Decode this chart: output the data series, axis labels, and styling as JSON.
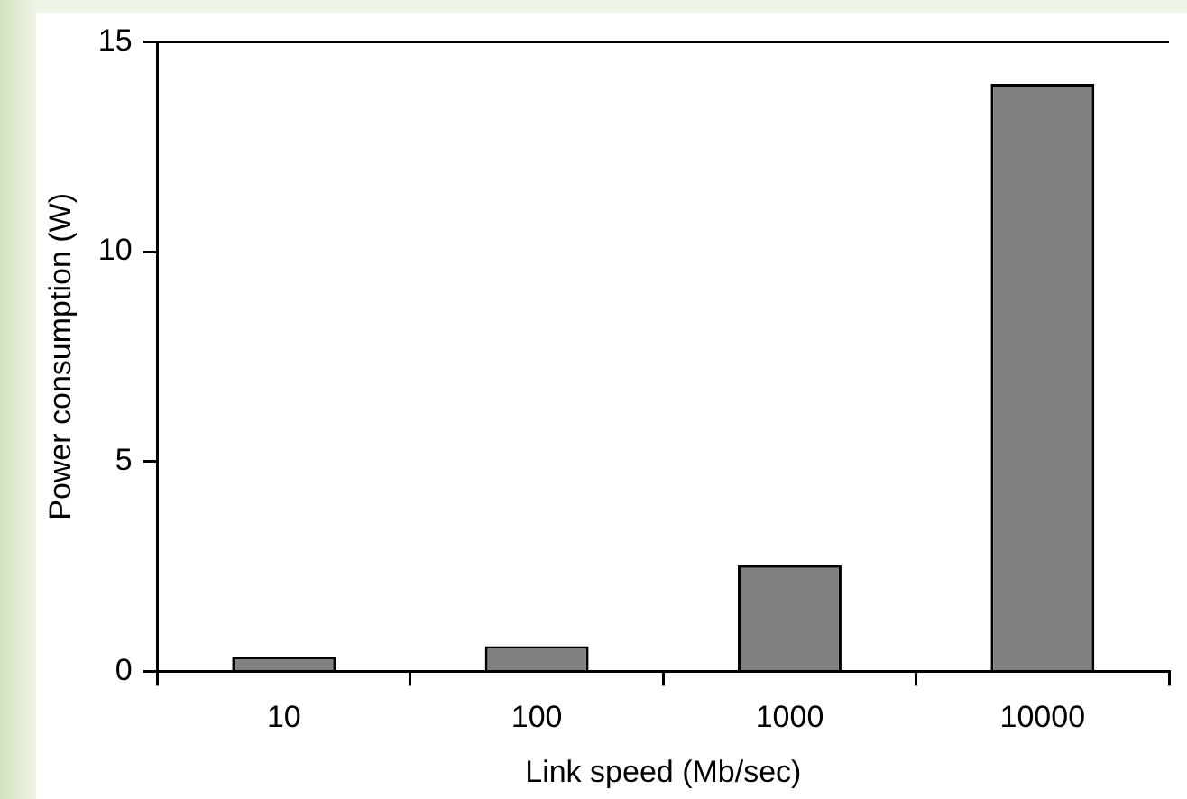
{
  "chart_data": {
    "type": "bar",
    "xlabel": "Link speed (Mb/sec)",
    "ylabel": "Power consumption (W)",
    "categories": [
      "10",
      "100",
      "1000",
      "10000"
    ],
    "values": [
      0.35,
      0.6,
      2.53,
      14.0
    ],
    "color": "#808080",
    "ylim": [
      0,
      15
    ],
    "yticks": [
      0,
      5,
      10,
      15
    ],
    "grid": false,
    "legend": false
  }
}
